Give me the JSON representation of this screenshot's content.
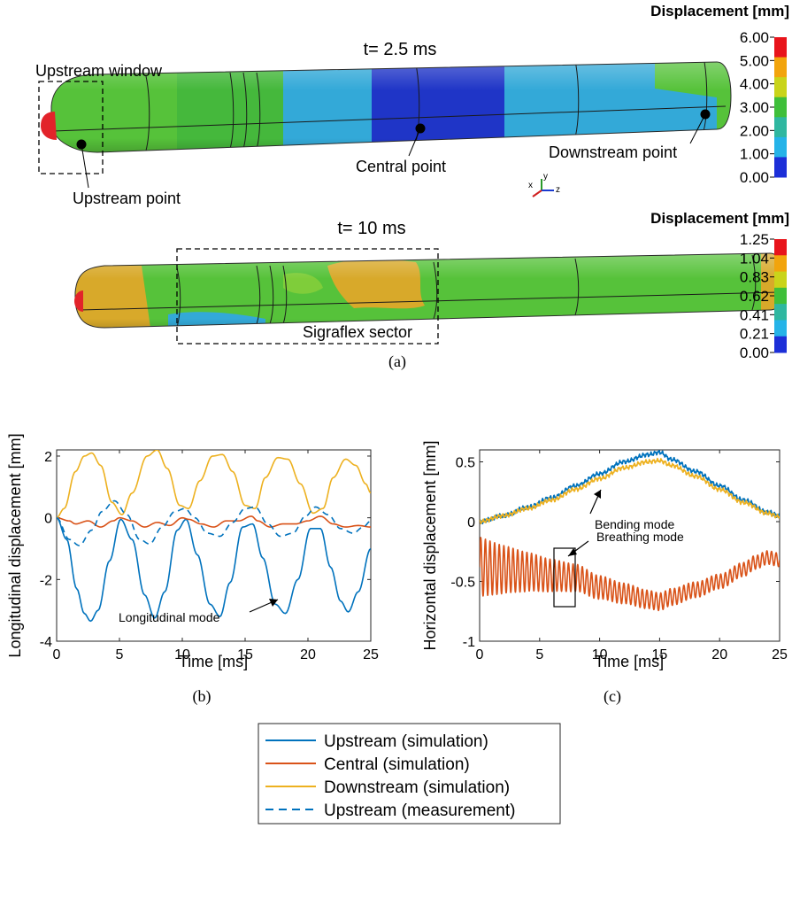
{
  "panel_a": {
    "caption": "(a)",
    "top": {
      "time_label": "t= 2.5 ms",
      "colorbar_title": "Displacement [mm]",
      "colorbar_ticks": [
        "6.00",
        "5.00",
        "4.00",
        "3.00",
        "2.00",
        "1.00",
        "0.00"
      ],
      "annotations": {
        "upstream_window": "Upstream window",
        "upstream_point": "Upstream point",
        "central_point": "Central point",
        "downstream_point": "Downstream point"
      },
      "axes_triad": {
        "x": "x",
        "y": "y",
        "z": "z"
      }
    },
    "bottom": {
      "time_label": "t= 10 ms",
      "colorbar_title": "Displacement [mm]",
      "colorbar_ticks": [
        "1.25",
        "1.04",
        "0.83",
        "0.62",
        "0.41",
        "0.21",
        "0.00"
      ],
      "annotations": {
        "sector": "Sigraflex sector"
      }
    },
    "colorbar_colors": [
      "#e8141b",
      "#f2a40c",
      "#c9d41a",
      "#3fbf3a",
      "#2fb7a0",
      "#25b3e8",
      "#1c2fd8"
    ],
    "contour_colors": {
      "red": "#e2232a",
      "orange": "#d8a92a",
      "green": "#56c23a",
      "lightgreen": "#7fcd3a",
      "cyan": "#33a9d8",
      "blue": "#1f35c7"
    }
  },
  "legend": [
    {
      "label": "Upstream (simulation)",
      "color": "#0072BD",
      "dash": false
    },
    {
      "label": "Central (simulation)",
      "color": "#D95319",
      "dash": false
    },
    {
      "label": "Downstream (simulation)",
      "color": "#EDB120",
      "dash": false
    },
    {
      "label": "Upstream (measurement)",
      "color": "#0072BD",
      "dash": true
    }
  ],
  "chart_data": [
    {
      "type": "line",
      "caption": "(b)",
      "xlabel": "Time [ms]",
      "ylabel": "Longitudinal displacement [mm]",
      "xlim": [
        0,
        25
      ],
      "ylim": [
        -4,
        2.2
      ],
      "xticks": [
        0,
        5,
        10,
        15,
        20,
        25
      ],
      "yticks": [
        -4,
        -2,
        0,
        2
      ],
      "annotation": "Longitudinal mode",
      "series": [
        {
          "name": "Upstream (simulation)",
          "x": [
            0,
            0.8,
            1.6,
            2.2,
            2.7,
            3.3,
            4.2,
            5.1,
            6.0,
            7.0,
            7.8,
            8.6,
            9.6,
            10.3,
            11.2,
            12.2,
            13.0,
            13.8,
            14.8,
            15.6,
            16.4,
            17.4,
            18.2,
            19.2,
            20.2,
            21.0,
            21.8,
            22.6,
            23.2,
            24.0,
            25.0
          ],
          "y": [
            0,
            -0.7,
            -2.3,
            -3.1,
            -3.35,
            -3.0,
            -1.4,
            -0.05,
            -0.7,
            -2.5,
            -3.25,
            -2.4,
            -0.4,
            -0.05,
            -1.2,
            -2.8,
            -3.2,
            -2.1,
            -0.3,
            -0.2,
            -1.3,
            -2.8,
            -3.1,
            -2.0,
            -0.35,
            -0.35,
            -1.6,
            -2.7,
            -3.05,
            -2.4,
            -1.0
          ]
        },
        {
          "name": "Central (simulation)",
          "x": [
            0,
            1.0,
            1.5,
            2.5,
            3.5,
            4.5,
            5.0,
            6.0,
            7.0,
            8.0,
            9.0,
            10.0,
            10.5,
            11.5,
            12.5,
            13.5,
            14.5,
            15.5,
            16.0,
            17.0,
            18.0,
            19.0,
            20.0,
            21.0,
            22.0,
            23.0,
            24.0,
            25.0
          ],
          "y": [
            0,
            -0.1,
            -0.2,
            -0.1,
            -0.3,
            -0.1,
            0.0,
            -0.1,
            -0.3,
            -0.15,
            -0.25,
            0.0,
            -0.05,
            -0.2,
            -0.3,
            -0.1,
            -0.1,
            0.05,
            -0.1,
            -0.3,
            -0.2,
            -0.2,
            -0.1,
            0.05,
            -0.2,
            -0.3,
            -0.25,
            -0.3
          ]
        },
        {
          "name": "Downstream (simulation)",
          "x": [
            0,
            0.6,
            1.5,
            2.2,
            2.8,
            3.5,
            4.4,
            5.2,
            6.0,
            7.2,
            8.0,
            8.8,
            9.8,
            10.5,
            11.4,
            12.4,
            13.2,
            14.0,
            15.0,
            15.8,
            16.6,
            17.6,
            18.4,
            19.4,
            20.4,
            21.2,
            22.0,
            23.0,
            23.8,
            24.6,
            25.0
          ],
          "y": [
            0,
            0.3,
            1.5,
            2.0,
            2.1,
            1.7,
            0.5,
            0.1,
            0.8,
            2.0,
            2.2,
            1.6,
            0.4,
            0.3,
            1.2,
            2.0,
            2.05,
            1.5,
            0.4,
            0.3,
            1.3,
            1.95,
            1.9,
            1.1,
            0.15,
            0.3,
            1.3,
            1.9,
            1.7,
            1.1,
            0.8
          ]
        },
        {
          "name": "Upstream (measurement)",
          "x": [
            0,
            1.0,
            1.8,
            2.8,
            3.6,
            4.6,
            5.6,
            6.6,
            7.4,
            8.4,
            9.4,
            10.2,
            11.0,
            12.0,
            13.0,
            14.0,
            15.0,
            15.8,
            16.8,
            17.8,
            18.8,
            19.8,
            20.6,
            21.6,
            22.6,
            23.6,
            24.4,
            25.0
          ],
          "y": [
            0,
            -0.7,
            -0.9,
            -0.4,
            0.2,
            0.55,
            0.1,
            -0.7,
            -0.85,
            -0.3,
            0.2,
            0.3,
            0.0,
            -0.5,
            -0.6,
            -0.15,
            0.3,
            0.35,
            -0.2,
            -0.6,
            -0.5,
            0.05,
            0.35,
            0.1,
            -0.35,
            -0.5,
            -0.3,
            -0.1
          ]
        }
      ]
    },
    {
      "type": "line",
      "caption": "(c)",
      "xlabel": "Time [ms]",
      "ylabel": "Horizontal displacement [mm]",
      "xlim": [
        0,
        25
      ],
      "ylim": [
        -1,
        0.6
      ],
      "xticks": [
        0,
        5,
        10,
        15,
        20,
        25
      ],
      "yticks": [
        -1,
        -0.5,
        0,
        0.5
      ],
      "annotations": [
        "Bending mode",
        "Breathing mode"
      ],
      "series": [
        {
          "name": "Upstream (simulation)",
          "x": [
            0,
            2,
            4,
            6,
            8,
            10,
            12,
            14,
            15,
            16,
            18,
            20,
            22,
            24,
            25
          ],
          "y": [
            0.0,
            0.05,
            0.12,
            0.2,
            0.3,
            0.4,
            0.5,
            0.56,
            0.58,
            0.52,
            0.42,
            0.3,
            0.18,
            0.08,
            0.05
          ]
        },
        {
          "name": "Central (simulation)",
          "x": [
            0,
            2,
            4,
            6,
            8,
            10,
            12,
            14,
            15,
            16,
            18,
            20,
            22,
            23,
            24,
            25
          ],
          "y": [
            -0.38,
            -0.4,
            -0.42,
            -0.45,
            -0.47,
            -0.55,
            -0.6,
            -0.65,
            -0.67,
            -0.63,
            -0.57,
            -0.5,
            -0.4,
            -0.34,
            -0.3,
            -0.32
          ]
        },
        {
          "name": "Downstream (simulation)",
          "x": [
            0,
            2,
            4,
            6,
            8,
            10,
            12,
            14,
            15,
            16,
            18,
            20,
            22,
            24,
            25
          ],
          "y": [
            0.0,
            0.05,
            0.11,
            0.18,
            0.27,
            0.36,
            0.45,
            0.5,
            0.51,
            0.47,
            0.38,
            0.27,
            0.16,
            0.07,
            0.04
          ]
        }
      ]
    }
  ]
}
